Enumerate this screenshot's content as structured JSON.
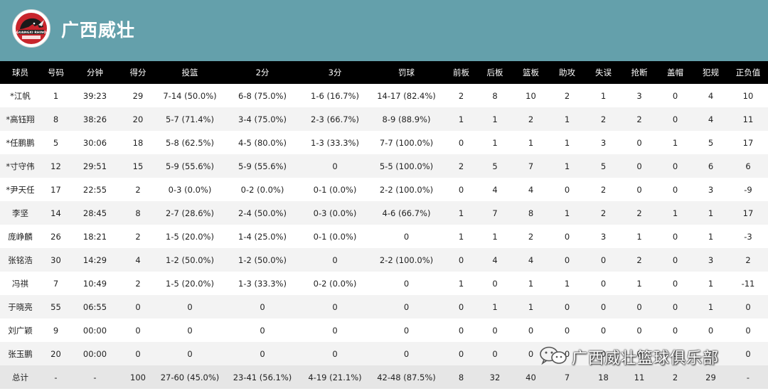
{
  "header": {
    "team_name": "广西威壮",
    "logo": {
      "icon": "rhino-logo-icon",
      "text": "GUANGXI RHINO",
      "colors": [
        "#c8252c",
        "#1a1a1a",
        "#ffffff"
      ]
    },
    "background_color": "#64a0ab"
  },
  "table": {
    "columns": [
      "球员",
      "号码",
      "分钟",
      "得分",
      "投篮",
      "2分",
      "3分",
      "罚球",
      "前板",
      "后板",
      "篮板",
      "助攻",
      "失误",
      "抢断",
      "盖帽",
      "犯规",
      "正负值"
    ],
    "rows": [
      [
        "*江帆",
        "1",
        "39:23",
        "29",
        "7-14 (50.0%)",
        "6-8 (75.0%)",
        "1-6 (16.7%)",
        "14-17 (82.4%)",
        "2",
        "8",
        "10",
        "2",
        "1",
        "3",
        "0",
        "4",
        "10"
      ],
      [
        "*高钰翔",
        "8",
        "38:26",
        "20",
        "5-7 (71.4%)",
        "3-4 (75.0%)",
        "2-3 (66.7%)",
        "8-9 (88.9%)",
        "1",
        "1",
        "2",
        "1",
        "2",
        "2",
        "0",
        "4",
        "11"
      ],
      [
        "*任鹏鹏",
        "5",
        "30:06",
        "18",
        "5-8 (62.5%)",
        "4-5 (80.0%)",
        "1-3 (33.3%)",
        "7-7 (100.0%)",
        "0",
        "1",
        "1",
        "1",
        "3",
        "0",
        "1",
        "5",
        "17"
      ],
      [
        "*寸守伟",
        "12",
        "29:51",
        "15",
        "5-9 (55.6%)",
        "5-9 (55.6%)",
        "0",
        "5-5 (100.0%)",
        "2",
        "5",
        "7",
        "1",
        "5",
        "0",
        "0",
        "6",
        "6"
      ],
      [
        "*尹天任",
        "17",
        "22:55",
        "2",
        "0-3 (0.0%)",
        "0-2 (0.0%)",
        "0-1 (0.0%)",
        "2-2 (100.0%)",
        "0",
        "4",
        "4",
        "0",
        "2",
        "0",
        "0",
        "3",
        "-9"
      ],
      [
        "李坚",
        "14",
        "28:45",
        "8",
        "2-7 (28.6%)",
        "2-4 (50.0%)",
        "0-3 (0.0%)",
        "4-6 (66.7%)",
        "1",
        "7",
        "8",
        "1",
        "2",
        "2",
        "1",
        "1",
        "17"
      ],
      [
        "庞峥麟",
        "26",
        "18:21",
        "2",
        "1-5 (20.0%)",
        "1-4 (25.0%)",
        "0-1 (0.0%)",
        "0",
        "1",
        "1",
        "2",
        "0",
        "3",
        "1",
        "0",
        "1",
        "-3"
      ],
      [
        "张铭浩",
        "30",
        "14:29",
        "4",
        "1-2 (50.0%)",
        "1-2 (50.0%)",
        "0",
        "2-2 (100.0%)",
        "0",
        "4",
        "4",
        "0",
        "0",
        "2",
        "0",
        "3",
        "2"
      ],
      [
        "冯祺",
        "7",
        "10:49",
        "2",
        "1-5 (20.0%)",
        "1-3 (33.3%)",
        "0-2 (0.0%)",
        "0",
        "1",
        "0",
        "1",
        "1",
        "0",
        "1",
        "0",
        "1",
        "-11"
      ],
      [
        "于晓亮",
        "55",
        "06:55",
        "0",
        "0",
        "0",
        "0",
        "0",
        "0",
        "1",
        "1",
        "0",
        "0",
        "0",
        "0",
        "1",
        "0"
      ],
      [
        "刘广颖",
        "9",
        "00:00",
        "0",
        "0",
        "0",
        "0",
        "0",
        "0",
        "0",
        "0",
        "0",
        "0",
        "0",
        "0",
        "0",
        "0"
      ],
      [
        "张玉鹏",
        "20",
        "00:00",
        "0",
        "0",
        "0",
        "0",
        "0",
        "0",
        "0",
        "0",
        "0",
        "0",
        "0",
        "0",
        "0",
        "0"
      ]
    ],
    "total": [
      "总计",
      "-",
      "-",
      "100",
      "27-60 (45.0%)",
      "23-41 (56.1%)",
      "4-19 (21.1%)",
      "42-48 (87.5%)",
      "8",
      "32",
      "40",
      "7",
      "18",
      "11",
      "2",
      "29",
      "-"
    ]
  },
  "watermark": {
    "icon": "wechat-icon",
    "text": "广西威壮篮球俱乐部"
  }
}
